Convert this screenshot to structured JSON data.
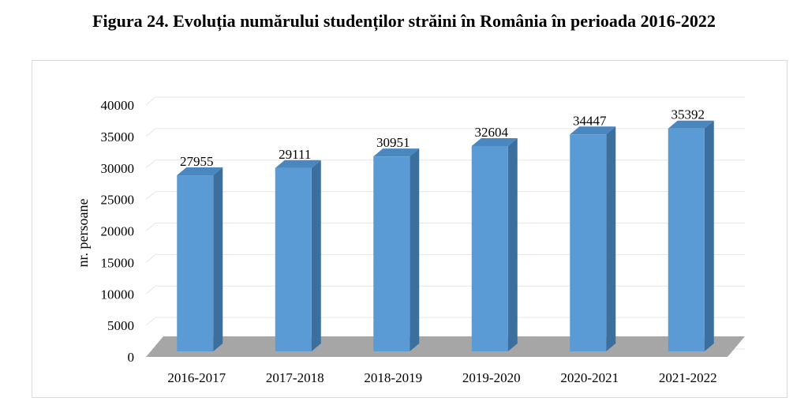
{
  "figure": {
    "title": "Figura 24. Evoluția numărului studenților străini în România în perioada 2016-2022"
  },
  "chart_data": {
    "type": "bar",
    "style": "3d-column",
    "categories": [
      "2016-2017",
      "2017-2018",
      "2018-2019",
      "2019-2020",
      "2020-2021",
      "2021-2022"
    ],
    "values": [
      27955,
      29111,
      30951,
      32604,
      34447,
      35392
    ],
    "data_labels": [
      "27955",
      "29111",
      "30951",
      "32604",
      "34447",
      "35392"
    ],
    "ylabel": "nr. persoane",
    "xlabel": "",
    "ylim": [
      0,
      40000
    ],
    "yticks": [
      0,
      5000,
      10000,
      15000,
      20000,
      25000,
      30000,
      35000,
      40000
    ],
    "grid": true,
    "legend": "none",
    "colors": {
      "bar_front": "#5b9bd5",
      "bar_side": "#3b6f9e",
      "bar_top": "#4a86bf",
      "floor": "#a6a6a6",
      "grid": "#e6e6e6"
    }
  }
}
